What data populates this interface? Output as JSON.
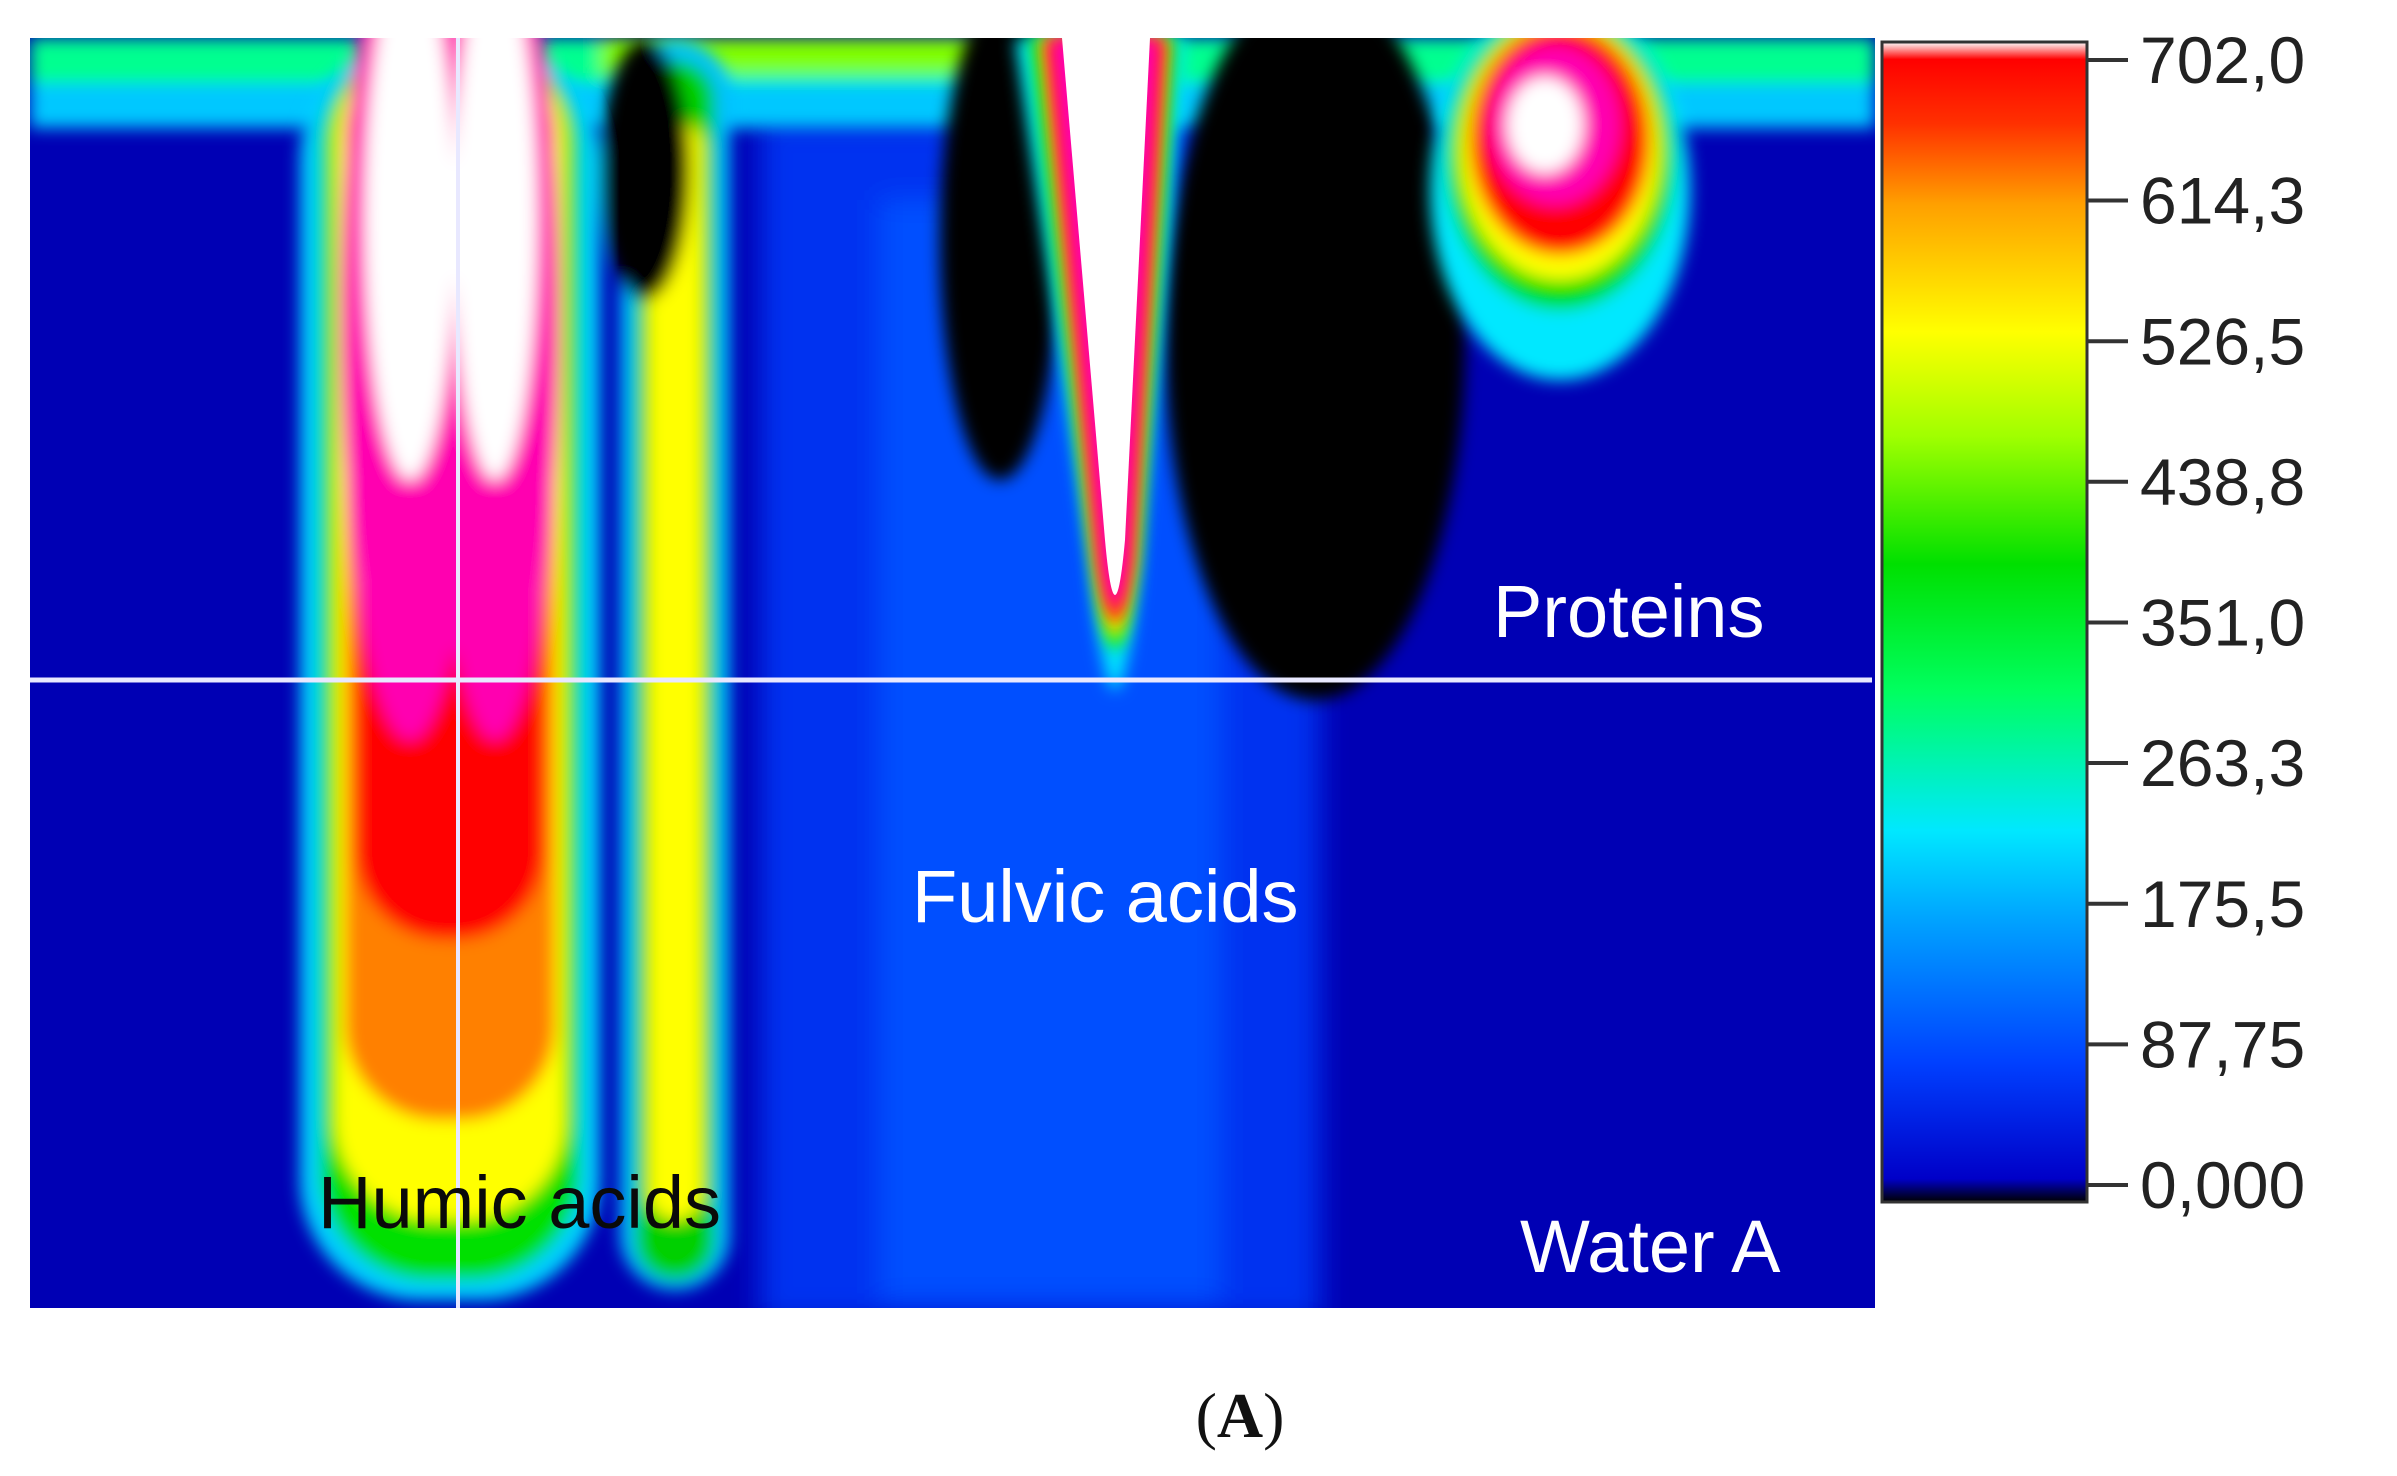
{
  "chart_data": {
    "type": "heatmap",
    "title": "",
    "xlabel": "",
    "ylabel": "",
    "panel_label_open": "(",
    "panel_label_letter": "A",
    "panel_label_close": ")",
    "colorbar": {
      "min": 0,
      "max": 702,
      "ticks": [
        {
          "value": 702.0,
          "label": "702,0"
        },
        {
          "value": 614.3,
          "label": "614,3"
        },
        {
          "value": 526.5,
          "label": "526,5"
        },
        {
          "value": 438.8,
          "label": "438,8"
        },
        {
          "value": 351.0,
          "label": "351,0"
        },
        {
          "value": 263.3,
          "label": "263,3"
        },
        {
          "value": 175.5,
          "label": "175,5"
        },
        {
          "value": 87.75,
          "label": "87,75"
        },
        {
          "value": 0.0,
          "label": "0,000"
        }
      ],
      "colors": [
        "#000000",
        "#0000c8",
        "#0040ff",
        "#00a0ff",
        "#00e8ff",
        "#00ff60",
        "#00e000",
        "#a0ff00",
        "#ffff00",
        "#ffa000",
        "#ff3000",
        "#ff0000",
        "#ffffff"
      ]
    },
    "annotations": [
      {
        "id": "humic",
        "text": "Humic acids",
        "color": "#0a0a0a"
      },
      {
        "id": "fulvic",
        "text": "Fulvic acids",
        "color": "#ffffff"
      },
      {
        "id": "proteins",
        "text": "Proteins",
        "color": "#ffffff"
      },
      {
        "id": "sample",
        "text": "Water A",
        "color": "#ffffff"
      }
    ]
  }
}
